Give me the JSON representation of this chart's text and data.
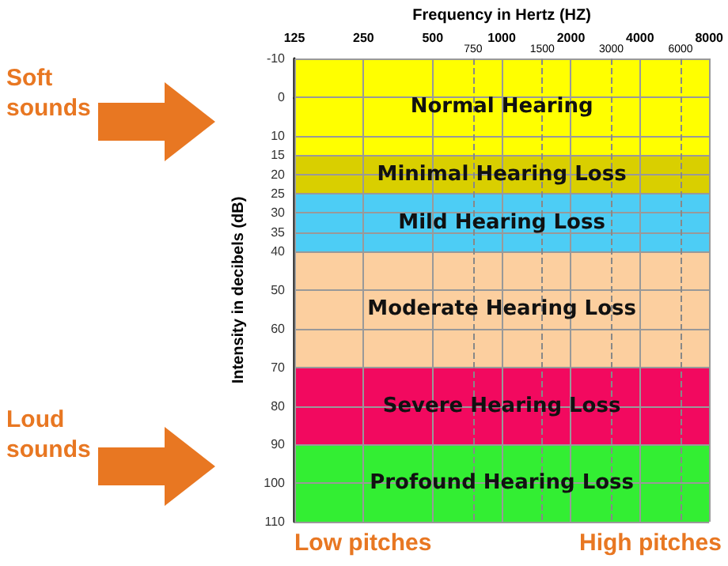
{
  "chart_data": {
    "type": "line",
    "xlabel": "Frequency in Hertz (HZ)",
    "ylabel": "Intensity in decibels (dB)",
    "log": "x",
    "xlim": [
      125,
      8000
    ],
    "xticks": [
      125,
      250,
      500,
      1000,
      2000,
      4000,
      8000
    ],
    "ylim": [
      110,
      -10
    ],
    "yticks": [
      -10,
      0,
      10,
      15,
      20,
      25,
      30,
      35,
      40,
      50,
      60,
      70,
      80,
      90,
      100,
      110
    ],
    "grid": true,
    "bands": [
      {
        "axis": "y",
        "from": -10,
        "to": 15,
        "label": "Normal Hearing",
        "color": "#ffff00"
      },
      {
        "axis": "y",
        "from": 15,
        "to": 25,
        "label": "Minimal Hearing Loss",
        "color": "#d9cf00"
      },
      {
        "axis": "y",
        "from": 25,
        "to": 40,
        "label": "Mild Hearing Loss",
        "color": "#4dcdf5"
      },
      {
        "axis": "y",
        "from": 40,
        "to": 70,
        "label": "Moderate Hearing Loss",
        "color": "#fccf9f"
      },
      {
        "axis": "y",
        "from": 70,
        "to": 90,
        "label": "Severe Hearing Loss",
        "color": "#f2095f"
      },
      {
        "axis": "y",
        "from": 90,
        "to": 110,
        "label": "Profound Hearing Loss",
        "color": "#33ee33"
      }
    ],
    "ref_lines": [
      {
        "axis": "x",
        "value": 750,
        "label": "750",
        "line_style": "dashed"
      },
      {
        "axis": "x",
        "value": 1500,
        "label": "1500",
        "line_style": "dashed"
      },
      {
        "axis": "x",
        "value": 3000,
        "label": "3000",
        "line_style": "dashed"
      },
      {
        "axis": "x",
        "value": 6000,
        "label": "6000",
        "line_style": "dashed"
      }
    ],
    "annotations": [
      "Soft sounds",
      "Loud sounds",
      "Low pitches",
      "High pitches"
    ]
  }
}
